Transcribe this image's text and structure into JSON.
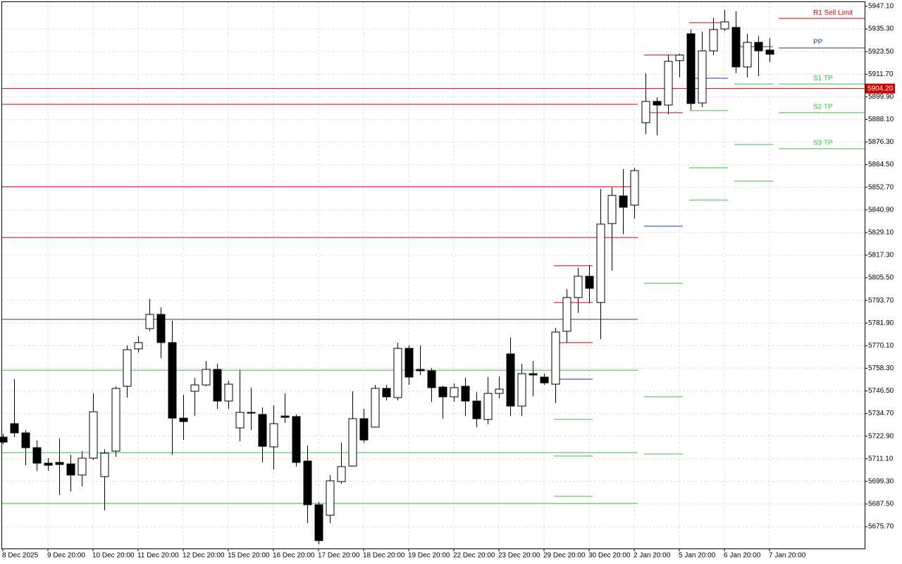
{
  "chart_data": {
    "type": "candlestick",
    "grid": true,
    "ylim": [
      5664.3,
      5949.3
    ],
    "yticks": [
      {
        "value": 5947.1,
        "label": "5947.10"
      },
      {
        "value": 5935.3,
        "label": "5935.30"
      },
      {
        "value": 5923.5,
        "label": "5923.50"
      },
      {
        "value": 5911.7,
        "label": "5911.70"
      },
      {
        "value": 5899.9,
        "label": "5899.90"
      },
      {
        "value": 5888.1,
        "label": "5888.10"
      },
      {
        "value": 5876.3,
        "label": "5876.30"
      },
      {
        "value": 5864.5,
        "label": "5864.50"
      },
      {
        "value": 5852.7,
        "label": "5852.70"
      },
      {
        "value": 5840.9,
        "label": "5840.90"
      },
      {
        "value": 5829.1,
        "label": "5829.10"
      },
      {
        "value": 5817.3,
        "label": "5817.30"
      },
      {
        "value": 5805.5,
        "label": "5805.50"
      },
      {
        "value": 5793.7,
        "label": "5793.70"
      },
      {
        "value": 5781.9,
        "label": "5781.90"
      },
      {
        "value": 5770.1,
        "label": "5770.10"
      },
      {
        "value": 5758.3,
        "label": "5758.30"
      },
      {
        "value": 5746.5,
        "label": "5746.50"
      },
      {
        "value": 5734.7,
        "label": "5734.70"
      },
      {
        "value": 5722.9,
        "label": "5722.90"
      },
      {
        "value": 5711.1,
        "label": "5711.10"
      },
      {
        "value": 5699.3,
        "label": "5699.30"
      },
      {
        "value": 5687.5,
        "label": "5687.50"
      },
      {
        "value": 5675.7,
        "label": "5675.70"
      }
    ],
    "categories": [
      "8 Dec 2025",
      null,
      null,
      null,
      "9 Dec 20:00",
      null,
      null,
      null,
      "10 Dec 20:00",
      null,
      null,
      null,
      "11 Dec 20:00",
      null,
      null,
      null,
      "12 Dec 20:00",
      null,
      null,
      null,
      "15 Dec 20:00",
      null,
      null,
      null,
      "16 Dec 20:00",
      null,
      null,
      null,
      "17 Dec 20:00",
      null,
      null,
      null,
      "18 Dec 20:00",
      null,
      null,
      null,
      "19 Dec 20:00",
      null,
      null,
      null,
      "22 Dec 20:00",
      null,
      null,
      null,
      "23 Dec 20:00",
      null,
      null,
      null,
      "29 Dec 20:00",
      null,
      null,
      null,
      "30 Dec 20:00",
      null,
      null,
      null,
      "2 Jan 20:00",
      null,
      null,
      null,
      "5 Jan 20:00",
      null,
      null,
      null,
      "6 Jan 20:00",
      null,
      null,
      null,
      "7 Jan 20:00"
    ],
    "open": [
      5722.4,
      5729.4,
      5724.6,
      5716.9,
      5708.8,
      5709.2,
      5708.4,
      5702.6,
      5711.4,
      5701.8,
      5715.1,
      5748.9,
      5768.4,
      5779.0,
      5786.4,
      5771.7,
      5732.3,
      5746.3,
      5749.6,
      5757.7,
      5741.2,
      5727.2,
      5735.3,
      5734.2,
      5717.3,
      5733.4,
      5733.1,
      5709.9,
      5687.1,
      5681.6,
      5699.2,
      5707.3,
      5732.0,
      5727.6,
      5747.8,
      5743.0,
      5768.7,
      5757.7,
      5757.0,
      5748.5,
      5743.4,
      5748.9,
      5741.2,
      5731.6,
      5745.2,
      5765.8,
      5738.6,
      5755.5,
      5753.7,
      5750.0,
      5777.6,
      5795.2,
      5806.3,
      5792.6,
      5833.8,
      5848.2,
      5843.4,
      5886.4,
      5897.5,
      5895.6,
      5918.8,
      5932.8,
      5896.7,
      5923.9,
      5935.3,
      5936.1,
      5915.5,
      5928.3,
      5924.3
    ],
    "high": [
      5724.2,
      5752.6,
      5726.1,
      5720.6,
      5711.4,
      5721.7,
      5713.2,
      5715.1,
      5745.2,
      5716.0,
      5748.9,
      5770.2,
      5775.0,
      5794.5,
      5790.1,
      5783.1,
      5744.5,
      5753.3,
      5762.1,
      5760.7,
      5751.8,
      5757.3,
      5748.2,
      5737.9,
      5739.0,
      5745.2,
      5734.2,
      5718.0,
      5688.6,
      5702.6,
      5719.5,
      5746.3,
      5737.1,
      5749.6,
      5749.6,
      5771.7,
      5770.2,
      5770.2,
      5758.4,
      5749.3,
      5750.4,
      5753.3,
      5745.9,
      5753.7,
      5754.0,
      5774.3,
      5760.7,
      5762.1,
      5755.5,
      5779.4,
      5799.6,
      5810.7,
      5812.1,
      5851.9,
      5852.6,
      5862.2,
      5862.9,
      5912.2,
      5899.7,
      5921.7,
      5922.5,
      5935.0,
      5933.9,
      5941.2,
      5945.3,
      5944.5,
      5932.8,
      5931.7,
      5930.6
    ],
    "low": [
      5718.7,
      5722.4,
      5707.7,
      5704.8,
      5704.8,
      5692.3,
      5694.1,
      5696.7,
      5710.6,
      5684.2,
      5712.1,
      5743.0,
      5766.5,
      5777.6,
      5763.6,
      5713.2,
      5720.9,
      5733.4,
      5748.9,
      5737.1,
      5737.1,
      5720.2,
      5726.1,
      5709.2,
      5705.5,
      5729.8,
      5707.0,
      5677.5,
      5666.5,
      5677.5,
      5698.1,
      5707.0,
      5719.5,
      5727.6,
      5741.5,
      5741.5,
      5749.6,
      5754.8,
      5740.8,
      5732.0,
      5740.8,
      5733.4,
      5727.6,
      5729.0,
      5742.6,
      5733.4,
      5733.4,
      5743.7,
      5749.6,
      5740.1,
      5771.7,
      5787.1,
      5792.3,
      5773.5,
      5809.2,
      5828.3,
      5836.4,
      5880.5,
      5879.8,
      5890.8,
      5910.0,
      5893.0,
      5894.5,
      5921.7,
      5934.2,
      5912.2,
      5910.0,
      5910.7,
      5918.0
    ],
    "close": [
      5719.8,
      5724.6,
      5716.9,
      5708.8,
      5707.7,
      5708.1,
      5702.6,
      5711.4,
      5735.6,
      5714.0,
      5747.8,
      5768.0,
      5771.7,
      5786.4,
      5771.7,
      5732.3,
      5730.5,
      5749.6,
      5757.7,
      5741.2,
      5750.0,
      5735.3,
      5734.9,
      5717.6,
      5729.4,
      5732.7,
      5709.2,
      5687.1,
      5668.4,
      5699.6,
      5707.0,
      5732.0,
      5720.9,
      5747.8,
      5743.4,
      5768.7,
      5753.7,
      5757.0,
      5748.2,
      5743.4,
      5748.2,
      5741.2,
      5732.0,
      5745.2,
      5747.4,
      5738.6,
      5755.5,
      5754.8,
      5750.7,
      5777.2,
      5795.2,
      5806.3,
      5800.0,
      5833.5,
      5848.5,
      5842.3,
      5861.4,
      5897.5,
      5895.6,
      5918.4,
      5921.7,
      5896.4,
      5923.9,
      5935.0,
      5939.0,
      5915.5,
      5928.3,
      5923.9,
      5922.1
    ],
    "level_groups": [
      {
        "from": 0,
        "to": 56,
        "lines": [
          {
            "value": 5896.0,
            "color": "#d00000"
          },
          {
            "value": 5853.0,
            "color": "#d00000"
          },
          {
            "value": 5826.5,
            "color": "#d00000"
          },
          {
            "value": 5783.8,
            "color": "#1c3f94"
          },
          {
            "value": 5757.3,
            "color": "#3cbc3c"
          },
          {
            "value": 5714.3,
            "color": "#3cbc3c"
          },
          {
            "value": 5687.8,
            "color": "#3cbc3c"
          }
        ]
      },
      {
        "from": 49,
        "to": 52,
        "lines": [
          {
            "value": 5811.8,
            "color": "#d00000"
          },
          {
            "value": 5792.6,
            "color": "#d00000"
          },
          {
            "value": 5771.7,
            "color": "#d00000"
          },
          {
            "value": 5752.6,
            "color": "#1c3f94"
          },
          {
            "value": 5731.6,
            "color": "#3cbc3c"
          },
          {
            "value": 5712.5,
            "color": "#3cbc3c"
          },
          {
            "value": 5691.5,
            "color": "#3cbc3c"
          }
        ]
      },
      {
        "from": 57,
        "to": 60,
        "lines": [
          {
            "value": 5921.7,
            "color": "#d00000"
          },
          {
            "value": 5891.6,
            "color": "#d00000"
          },
          {
            "value": 5832.4,
            "color": "#1c3f94"
          },
          {
            "value": 5802.6,
            "color": "#3cbc3c"
          },
          {
            "value": 5743.4,
            "color": "#3cbc3c"
          },
          {
            "value": 5713.6,
            "color": "#3cbc3c"
          }
        ]
      },
      {
        "from": 61,
        "to": 64,
        "lines": [
          {
            "value": 5938.6,
            "color": "#d00000"
          },
          {
            "value": 5909.6,
            "color": "#1c3f94"
          },
          {
            "value": 5892.7,
            "color": "#3cbc3c"
          },
          {
            "value": 5862.9,
            "color": "#3cbc3c"
          },
          {
            "value": 5846.0,
            "color": "#3cbc3c"
          }
        ]
      },
      {
        "from": 65,
        "to": 68,
        "lines": [
          {
            "value": 5926.1,
            "color": "#1c3f94"
          },
          {
            "value": 5906.6,
            "color": "#3cbc3c"
          },
          {
            "value": 5875.0,
            "color": "#3cbc3c"
          },
          {
            "value": 5855.9,
            "color": "#3cbc3c"
          }
        ]
      }
    ],
    "targets": [
      {
        "name": "R1 Sell Limit",
        "value": 5940.8,
        "color": "#d00000"
      },
      {
        "name": "PP",
        "value": 5925.4,
        "color": "#1c3f94"
      },
      {
        "name": "S1 TP",
        "value": 5906.6,
        "color": "#3cbc3c"
      },
      {
        "name": "S2 TP",
        "value": 5891.6,
        "color": "#3cbc3c"
      },
      {
        "name": "S3 TP",
        "value": 5872.8,
        "color": "#3cbc3c"
      }
    ],
    "current_price": {
      "value": 5904.2,
      "label": "5904.20",
      "color": "#d00000"
    }
  }
}
